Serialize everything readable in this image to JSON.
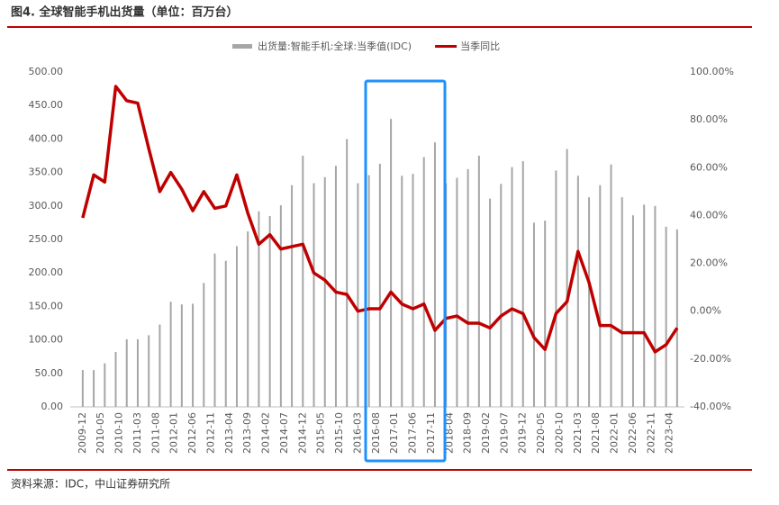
{
  "chart_data": {
    "type": "bar-line",
    "title": "图4. 全球智能手机出货量（单位：百万台）",
    "source": "资料来源：IDC，中山证券研究所",
    "x": [
      0,
      3,
      6,
      9,
      12,
      15,
      18,
      21,
      24,
      27,
      30,
      33,
      36,
      39,
      42,
      45,
      48,
      51,
      54,
      57,
      60,
      63,
      66,
      69,
      72,
      75,
      78,
      81,
      84,
      87,
      90,
      93,
      96,
      99,
      102,
      105,
      108,
      111,
      114,
      117,
      120,
      123,
      126,
      129,
      132,
      135,
      138,
      141,
      144,
      147,
      150,
      153,
      156,
      159,
      162
    ],
    "xlim": [
      -3.4,
      164
    ],
    "xticks": [
      {
        "value": 0,
        "label": "2009-12"
      },
      {
        "value": 5,
        "label": "2010-05"
      },
      {
        "value": 10,
        "label": "2010-10"
      },
      {
        "value": 15,
        "label": "2011-03"
      },
      {
        "value": 20,
        "label": "2011-08"
      },
      {
        "value": 25,
        "label": "2012-01"
      },
      {
        "value": 30,
        "label": "2012-06"
      },
      {
        "value": 35,
        "label": "2012-11"
      },
      {
        "value": 40,
        "label": "2013-04"
      },
      {
        "value": 45,
        "label": "2013-09"
      },
      {
        "value": 50,
        "label": "2014-02"
      },
      {
        "value": 55,
        "label": "2014-07"
      },
      {
        "value": 60,
        "label": "2014-12"
      },
      {
        "value": 65,
        "label": "2015-05"
      },
      {
        "value": 70,
        "label": "2015-10"
      },
      {
        "value": 75,
        "label": "2016-03"
      },
      {
        "value": 80,
        "label": "2016-08"
      },
      {
        "value": 85,
        "label": "2017-01"
      },
      {
        "value": 90,
        "label": "2017-06"
      },
      {
        "value": 95,
        "label": "2017-11"
      },
      {
        "value": 100,
        "label": "2018-04"
      },
      {
        "value": 105,
        "label": "2018-09"
      },
      {
        "value": 110,
        "label": "2019-02"
      },
      {
        "value": 115,
        "label": "2019-07"
      },
      {
        "value": 120,
        "label": "2019-12"
      },
      {
        "value": 125,
        "label": "2020-05"
      },
      {
        "value": 130,
        "label": "2020-10"
      },
      {
        "value": 135,
        "label": "2021-03"
      },
      {
        "value": 140,
        "label": "2021-08"
      },
      {
        "value": 145,
        "label": "2022-01"
      },
      {
        "value": 150,
        "label": "2022-06"
      },
      {
        "value": 155,
        "label": "2022-11"
      },
      {
        "value": 160,
        "label": "2023-04"
      }
    ],
    "ylim": [
      0,
      500
    ],
    "yticks": [
      {
        "value": 0,
        "label": "0.00"
      },
      {
        "value": 50,
        "label": "50.00"
      },
      {
        "value": 100,
        "label": "100.00"
      },
      {
        "value": 150,
        "label": "150.00"
      },
      {
        "value": 200,
        "label": "200.00"
      },
      {
        "value": 250,
        "label": "250.00"
      },
      {
        "value": 300,
        "label": "300.00"
      },
      {
        "value": 350,
        "label": "350.00"
      },
      {
        "value": 400,
        "label": "400.00"
      },
      {
        "value": 450,
        "label": "450.00"
      },
      {
        "value": 500,
        "label": "500.00"
      }
    ],
    "y2lim": [
      -40,
      100
    ],
    "y2ticks": [
      {
        "value": -40,
        "label": "-40.00%"
      },
      {
        "value": -20,
        "label": "-20.00%"
      },
      {
        "value": 0,
        "label": "0.00%"
      },
      {
        "value": 20,
        "label": "20.00%"
      },
      {
        "value": 40,
        "label": "40.00%"
      },
      {
        "value": 60,
        "label": "60.00%"
      },
      {
        "value": 80,
        "label": "80.00%"
      },
      {
        "value": 100,
        "label": "100.00%"
      }
    ],
    "series": [
      {
        "name": "出货量:智能手机:全球:当季值(IDC)",
        "kind": "bar",
        "color": "#a6a6a6",
        "values": [
          55,
          55,
          65,
          82,
          101,
          101,
          107,
          123,
          157,
          153,
          154,
          185,
          229,
          218,
          240,
          262,
          292,
          285,
          301,
          331,
          375,
          334,
          343,
          360,
          400,
          334,
          346,
          363,
          430,
          345,
          348,
          373,
          395,
          334,
          342,
          355,
          375,
          311,
          333,
          358,
          367,
          275,
          278,
          353,
          385,
          345,
          313,
          331,
          362,
          313,
          286,
          302,
          300,
          269,
          265
        ]
      },
      {
        "name": "当季同比",
        "kind": "line",
        "axis": "y2",
        "color": "#c00000",
        "values": [
          39,
          57,
          54,
          94,
          88,
          87,
          68,
          50,
          58,
          51,
          42,
          50,
          43,
          44,
          57,
          41,
          28,
          32,
          26,
          27,
          28,
          16,
          13,
          8,
          7,
          0,
          1,
          1,
          8,
          3,
          1,
          3,
          -8,
          -3,
          -2,
          -5,
          -5,
          -7,
          -2,
          1,
          -1,
          -11,
          -16,
          -1,
          4,
          25,
          12,
          -6,
          -6,
          -9,
          -9,
          -9,
          -17,
          -14,
          -7
        ]
      }
    ]
  }
}
